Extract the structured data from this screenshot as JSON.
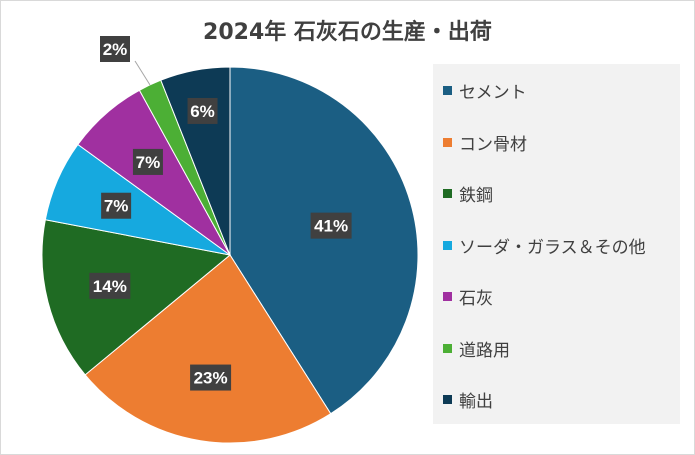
{
  "chart_data": {
    "type": "pie",
    "title": "2024年 石灰石の生産・出荷",
    "categories": [
      "セメント",
      "コン骨材",
      "鉄鋼",
      "ソーダ・ガラス＆その他",
      "石灰",
      "道路用",
      "輸出"
    ],
    "values": [
      41,
      23,
      14,
      7,
      7,
      2,
      6
    ],
    "data_labels": [
      "41%",
      "23%",
      "14%",
      "7%",
      "7%",
      "2%",
      "6%"
    ],
    "colors": [
      "#1b5e83",
      "#ed7d31",
      "#1f6b23",
      "#16a9df",
      "#a030a0",
      "#4caf35",
      "#0d3a55"
    ],
    "legend_position": "right"
  }
}
